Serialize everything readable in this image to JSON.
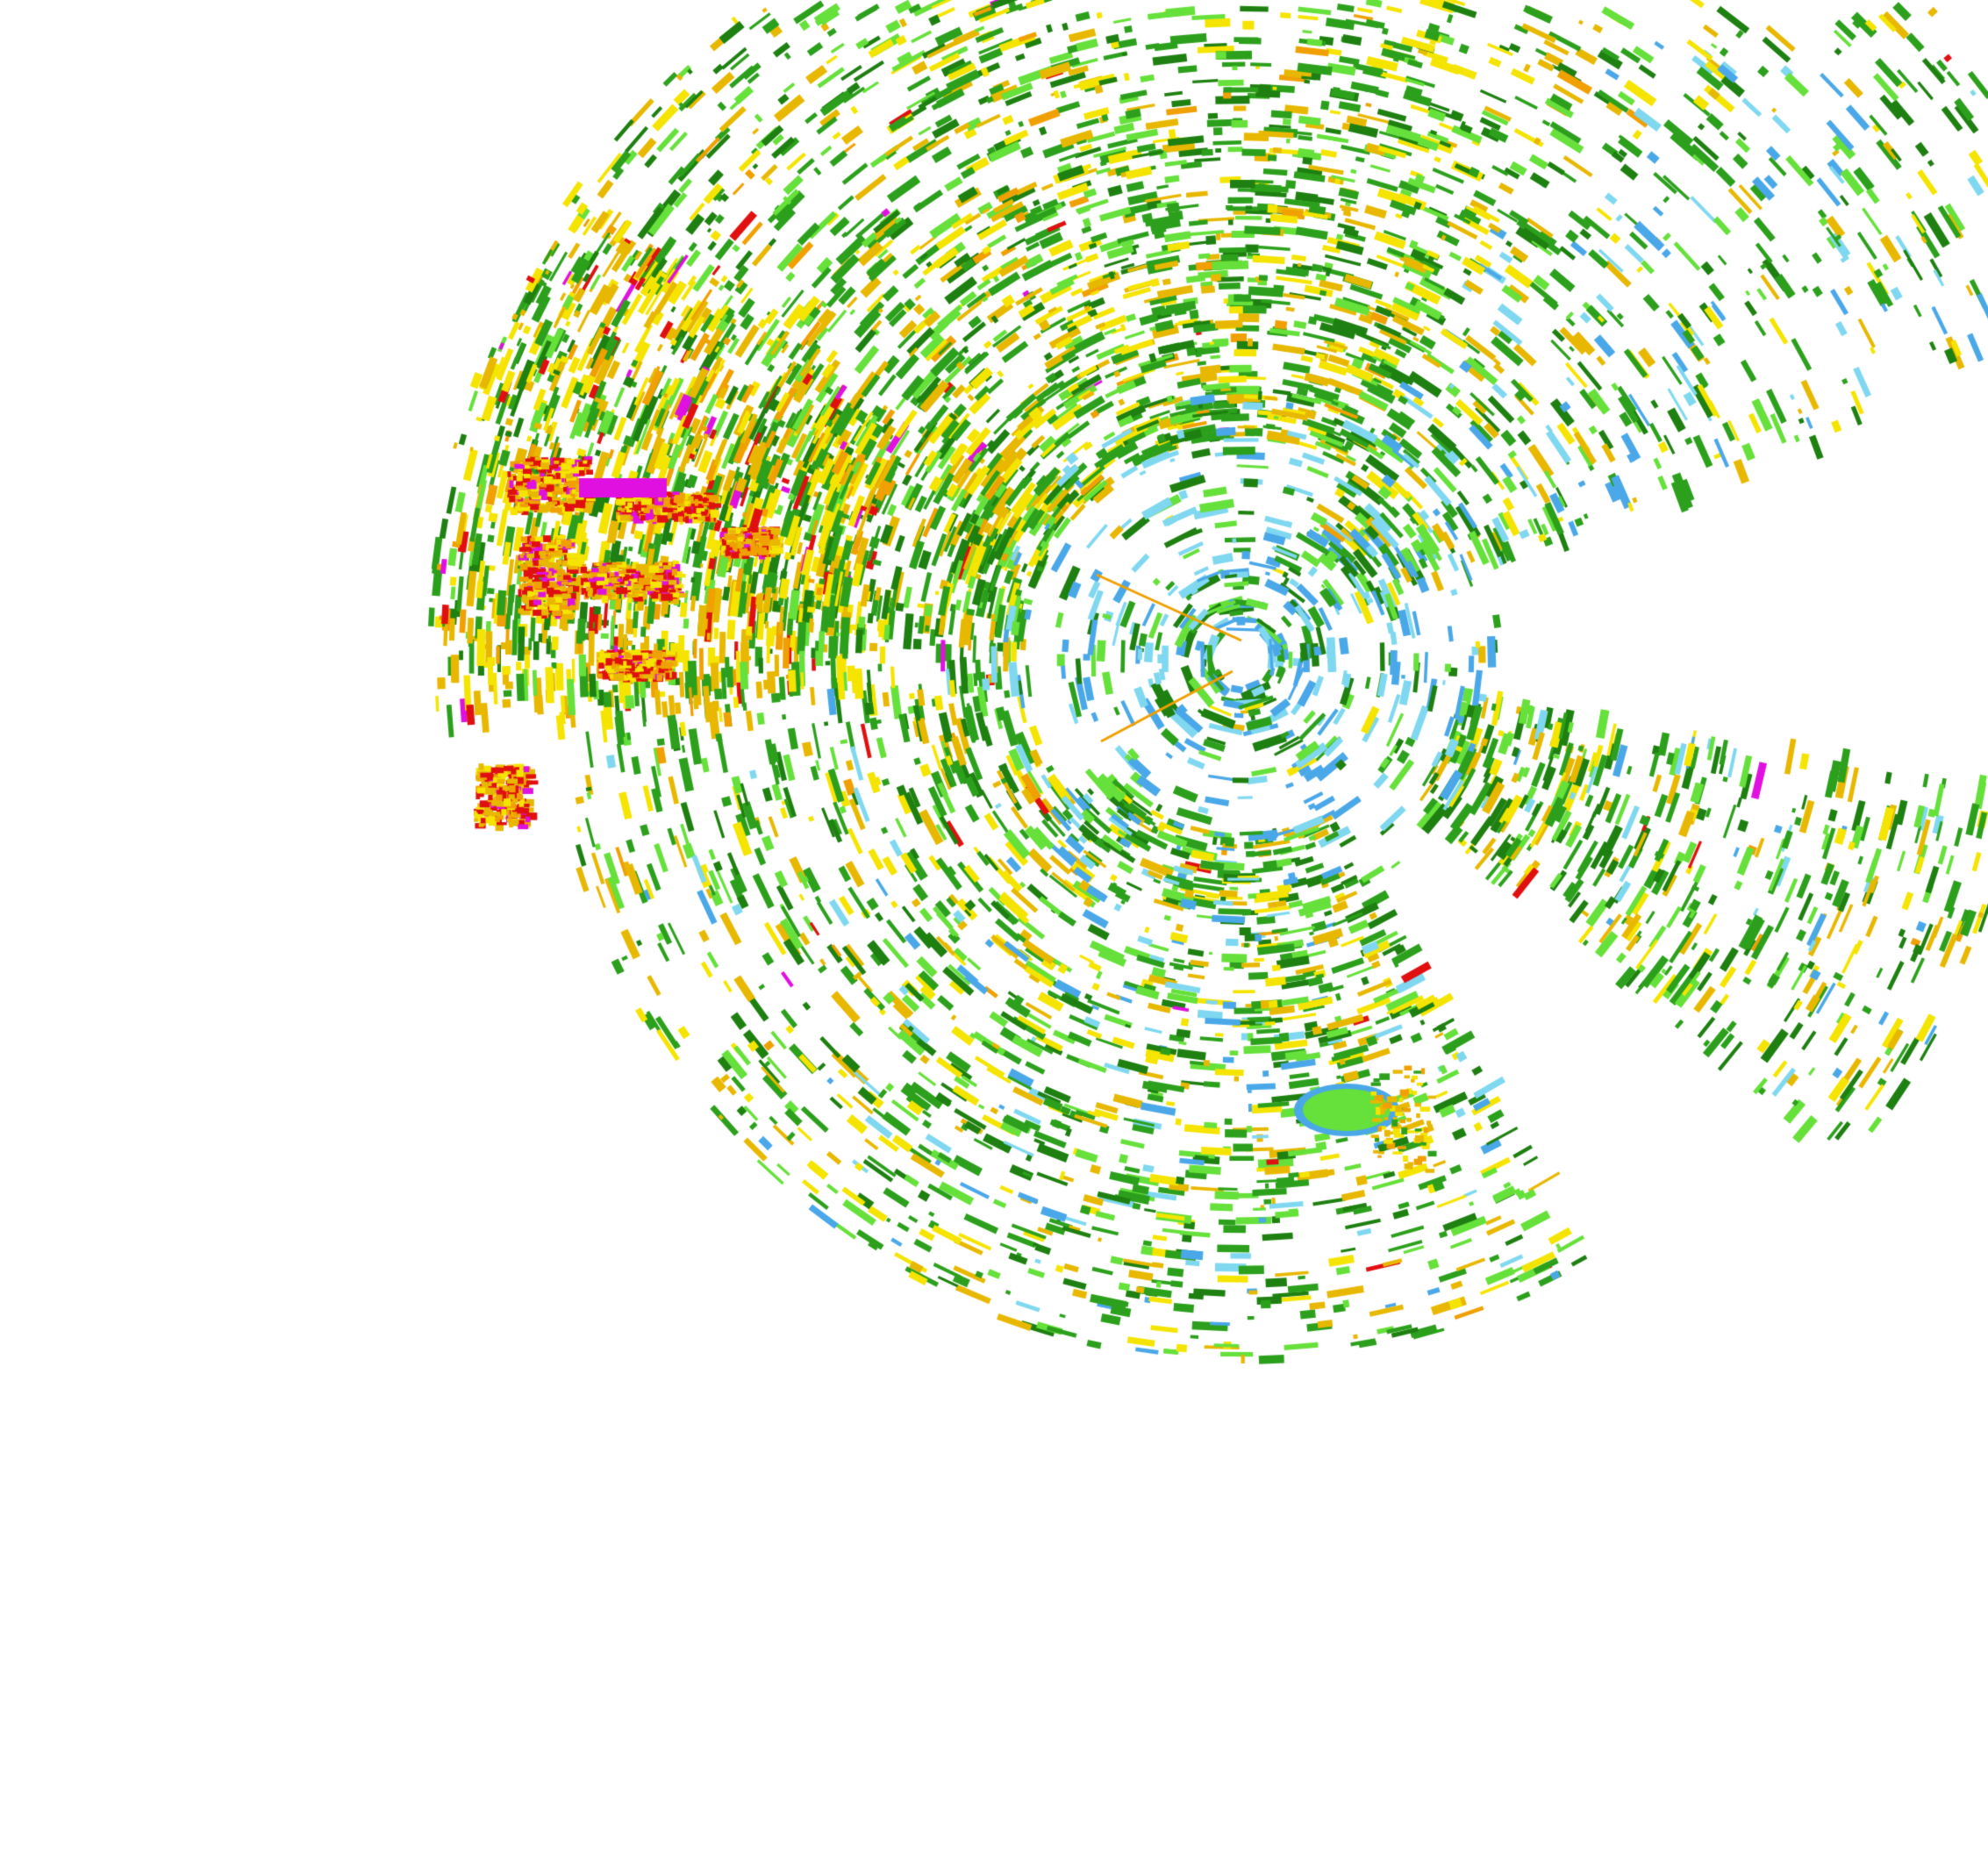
{
  "map": {
    "layer": "radar-reflectivity",
    "palette": {
      "light_blue": "#7fd8f0",
      "blue": "#4aa8e8",
      "light_green": "#66e03a",
      "green": "#2ca01c",
      "dark_green": "#1e8010",
      "yellow": "#f5e400",
      "gold": "#e8b800",
      "orange": "#f0a000",
      "red": "#e01010",
      "magenta": "#e010e0",
      "background": "#ffffff"
    }
  }
}
